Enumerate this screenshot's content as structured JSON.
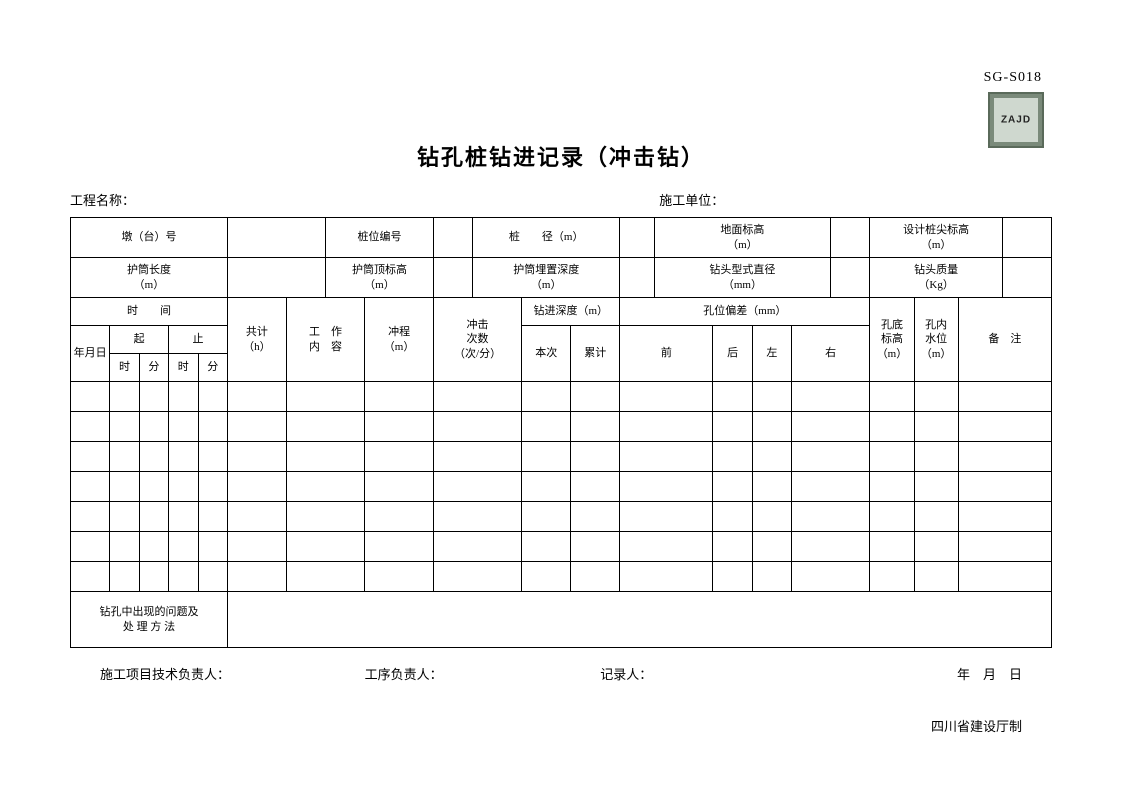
{
  "doc_code": "SG-S018",
  "stamp_text": "ZAJD",
  "title": "钻孔桩钻进记录（冲击钻）",
  "meta": {
    "project_label": "工程名称：",
    "unit_label": "施工单位："
  },
  "row1": {
    "pier_no": "墩（台）号",
    "pile_no": "桩位编号",
    "pile_dia": "桩　　径（m）",
    "ground_elev": "地面标高\n（m）",
    "design_tip_elev": "设计桩尖标高\n（m）"
  },
  "row2": {
    "casing_len": "护筒长度\n（m）",
    "casing_top_elev": "护筒顶标高\n（m）",
    "casing_depth": "护筒埋置深度\n（m）",
    "drill_type_dia": "钻头型式直径\n（mm）",
    "drill_weight": "钻头质量\n（Kg）"
  },
  "head": {
    "time": "时　　间",
    "ymd": "年月日",
    "start": "起",
    "end": "止",
    "hour": "时",
    "minute": "分",
    "total_h": "共计\n（h）",
    "work_content": "工　作\n内　容",
    "stroke": "冲程\n（m）",
    "impact_freq": "冲击\n次数\n（次/分）",
    "drill_depth": "钻进深度（m）",
    "this_time": "本次",
    "cumul": "累计",
    "deviation": "孔位偏差（mm）",
    "front": "前",
    "back": "后",
    "left": "左",
    "right": "右",
    "bottom_elev": "孔底\n标高\n（m）",
    "water_level": "孔内\n水位\n（m）",
    "remark": "备　注"
  },
  "issue_label": "钻孔中出现的问题及\n处 理 方 法",
  "sign": {
    "tech": "施工项目技术负责人：",
    "proc": "工序负责人：",
    "rec": "记录人：",
    "date": "年　月　日"
  },
  "footer": "四川省建设厅制",
  "data_row_count": 7
}
